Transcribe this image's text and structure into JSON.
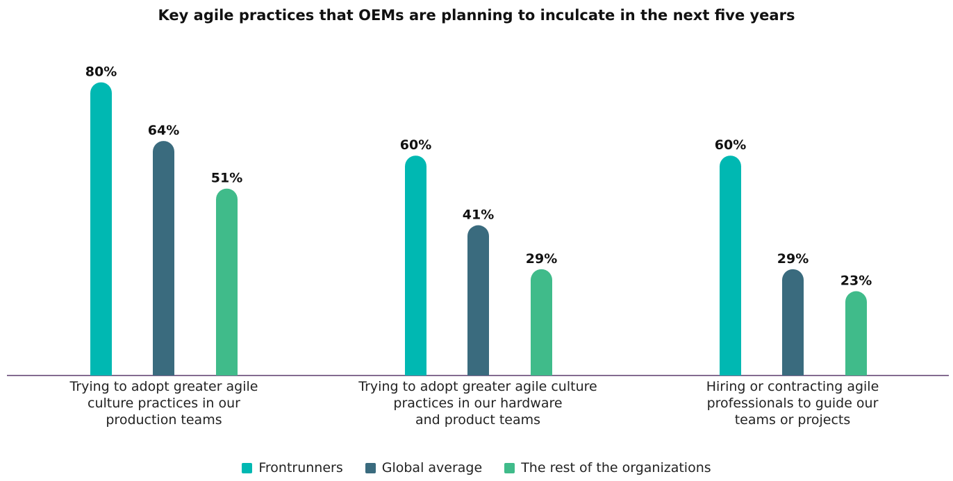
{
  "chart_data": {
    "type": "bar",
    "title": "Key agile practices that OEMs are planning to inculcate in the next five years",
    "categories": [
      "Trying to adopt greater agile\nculture practices in our\nproduction teams",
      "Trying to adopt greater agile culture\npractices in our hardware\nand product teams",
      "Hiring or contracting agile\nprofessionals to guide our\nteams or projects"
    ],
    "series": [
      {
        "name": "Frontrunners",
        "color": "#00b8b2",
        "values": [
          80,
          60,
          60
        ],
        "labels": [
          "80%",
          "60%",
          "60%"
        ]
      },
      {
        "name": "Global average",
        "color": "#3a6b7e",
        "values": [
          64,
          41,
          29
        ],
        "labels": [
          "64%",
          "41%",
          "29%"
        ]
      },
      {
        "name": "The rest of the organizations",
        "color": "#40bb8a",
        "values": [
          51,
          29,
          23
        ],
        "labels": [
          "51%",
          "29%",
          "23%"
        ]
      }
    ],
    "ylim": [
      0,
      100
    ],
    "axis_color": "#5c3a6b",
    "grid": false,
    "legend_position": "bottom"
  }
}
